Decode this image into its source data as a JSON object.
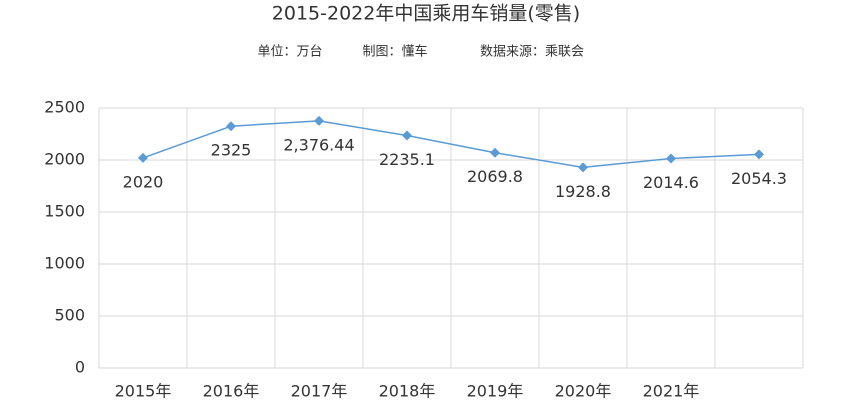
{
  "chart_data": {
    "type": "line",
    "title": "2015-2022年中国乘用车销量(零售)",
    "notes": [
      "单位：万台",
      "制图：懂车",
      "数据来源：乘联会"
    ],
    "categories": [
      "2015年",
      "2016年",
      "2017年",
      "2018年",
      "2019年",
      "2020年",
      "2021年",
      null
    ],
    "series": [
      {
        "name": "乘用车销量",
        "color": "#5b9bd5",
        "values": [
          2020,
          2325,
          2376.44,
          2235.1,
          2069.8,
          1928.8,
          2014.6,
          2054.3
        ],
        "value_labels": [
          "2020",
          "2325",
          "2,376.44",
          "2235.1",
          "2069.8",
          "1928.8",
          "2014.6",
          "2054.3"
        ]
      }
    ],
    "ylim": [
      0,
      2500
    ],
    "yticks": [
      0,
      500,
      1000,
      1500,
      2000,
      2500
    ],
    "grid": true
  }
}
